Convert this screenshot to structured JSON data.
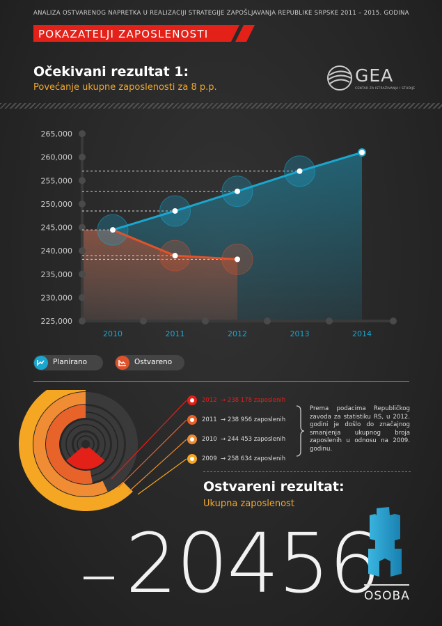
{
  "header": {
    "top_line": "ANALIZA OSTVARENOG NAPRETKA U REALIZACIJI  STRATEGIJE ZAPOŠLJAVANJA REPUBLIKE SRPSKE 2011 – 2015. GODINA",
    "banner": "POKAZATELJI ZAPOSLENOSTI"
  },
  "section1": {
    "title": "Očekivani rezultat 1:",
    "subtitle": "Povećanje ukupne zaposlenosti za 8 p.p."
  },
  "logo": {
    "text": "GEA",
    "subtext": "CENTAR ZA ISTRAŽIVANJA I STUDIJE"
  },
  "colors": {
    "planned": "#1aa7cf",
    "achieved": "#e0532a",
    "accent_red": "#e32119",
    "orange": "#f5a623"
  },
  "chart_data": {
    "type": "line",
    "x": [
      "2010",
      "2011",
      "2012",
      "2013",
      "2014"
    ],
    "y_ticks": [
      "265,000",
      "260,000",
      "255,000",
      "250,000",
      "245,000",
      "240,000",
      "235,000",
      "230,000",
      "225,000"
    ],
    "ylim": [
      225000,
      265000
    ],
    "series": [
      {
        "name": "Planirano",
        "x": [
          "2010",
          "2011",
          "2012",
          "2013",
          "2014"
        ],
        "values": [
          244453,
          248500,
          252700,
          257000,
          261000
        ],
        "color": "#1aa7cf"
      },
      {
        "name": "Ostvareno",
        "x": [
          "2010",
          "2011",
          "2012"
        ],
        "values": [
          244453,
          238956,
          238178
        ],
        "color": "#e0532a"
      }
    ],
    "legend": [
      "Planirano",
      "Ostvareno"
    ],
    "grid": false
  },
  "donut_legend": {
    "items": [
      {
        "year": "2012",
        "text": "→ 238 178 zaposlenih",
        "color": "#e32119",
        "value": 238178
      },
      {
        "year": "2011",
        "text": "→ 238 956 zaposlenih",
        "color": "#e8632a",
        "value": 238956
      },
      {
        "year": "2010",
        "text": "→ 244 453 zaposlenih",
        "color": "#ef8c34",
        "value": 244453
      },
      {
        "year": "2009",
        "text": "→ 258 634 zaposlenih",
        "color": "#f5a623",
        "value": 258634
      }
    ],
    "note": "Prema podacima Republičkog zavoda za statistiku RS, u 2012. godini je došlo do značajnog smanjenja ukupnog broja zaposlenih u odnosu na 2009. godinu."
  },
  "result": {
    "title": "Ostvareni rezultat:",
    "subtitle": "Ukupna zaposlenost",
    "sign": "–",
    "value": "20456",
    "unit": "OSOBA"
  }
}
